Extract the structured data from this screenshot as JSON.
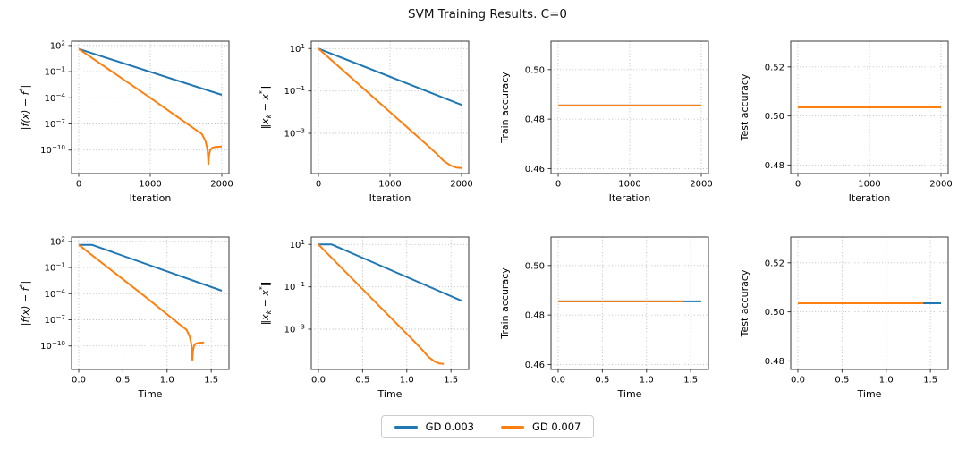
{
  "figure": {
    "title": "SVM Training Results. C=0",
    "grid": true,
    "legend": {
      "position": "lower center",
      "entries": [
        {
          "label": "GD 0.003",
          "color": "#1f77b4"
        },
        {
          "label": "GD 0.007",
          "color": "#ff7f0e"
        }
      ]
    }
  },
  "colors": {
    "blue": "#1f77b4",
    "orange": "#ff7f0e",
    "grid": "#b8b8b8",
    "spine": "#3a3a3a",
    "text": "#000000"
  },
  "chart_data": [
    {
      "type": "line",
      "xlabel": "Iteration",
      "ylabel": "|f(x) − f^*|",
      "ylabel_italic": true,
      "yscale": "log",
      "xlim": [
        -100,
        2100
      ],
      "xticks": [
        0,
        1000,
        2000
      ],
      "xtick_labels": [
        "0",
        "1000",
        "2000"
      ],
      "ylim_exp": [
        -12.7,
        2.5
      ],
      "ytick_exps": [
        2,
        -1,
        -4,
        -7,
        -10
      ],
      "series": [
        {
          "name": "GD 0.003",
          "color": "#1f77b4",
          "x": [
            0,
            2000
          ],
          "y": [
            40,
            0.00022
          ]
        },
        {
          "name": "GD 0.007",
          "color": "#ff7f0e",
          "x": [
            0,
            1000,
            1600,
            1720,
            1770,
            1800,
            1812,
            1822,
            1840,
            1865,
            1910,
            2000
          ],
          "y": [
            40,
            0.0001,
            3.4e-08,
            7e-09,
            1.2e-09,
            1.2e-10,
            2.5e-12,
            3e-11,
            1.1e-10,
            1.8e-10,
            2.3e-10,
            2.5e-10
          ]
        }
      ]
    },
    {
      "type": "line",
      "xlabel": "Iteration",
      "ylabel": "‖x_k − x^*‖",
      "ylabel_italic": true,
      "yscale": "log",
      "xlim": [
        -100,
        2100
      ],
      "xticks": [
        0,
        1000,
        2000
      ],
      "xtick_labels": [
        "0",
        "1000",
        "2000"
      ],
      "ylim_exp": [
        -4.9,
        1.35
      ],
      "ytick_exps": [
        1,
        -1,
        -3
      ],
      "series": [
        {
          "name": "GD 0.003",
          "color": "#1f77b4",
          "x": [
            0,
            2000
          ],
          "y": [
            10,
            0.022
          ]
        },
        {
          "name": "GD 0.007",
          "color": "#ff7f0e",
          "x": [
            0,
            1000,
            1500,
            1650,
            1750,
            1850,
            1925,
            2000
          ],
          "y": [
            10,
            0.01,
            0.00032,
            0.00011,
            5e-05,
            3e-05,
            2.45e-05,
            2.3e-05
          ]
        }
      ]
    },
    {
      "type": "line",
      "xlabel": "Iteration",
      "ylabel": "Train accuracy",
      "ylabel_italic": false,
      "yscale": "linear",
      "xlim": [
        -100,
        2100
      ],
      "xticks": [
        0,
        1000,
        2000
      ],
      "xtick_labels": [
        "0",
        "1000",
        "2000"
      ],
      "ylim": [
        0.458,
        0.5115
      ],
      "yticks": [
        0.46,
        0.48,
        0.5
      ],
      "ytick_labels": [
        "0.46",
        "0.48",
        "0.50"
      ],
      "series": [
        {
          "name": "GD 0.003",
          "color": "#1f77b4",
          "x": [
            0,
            2000
          ],
          "y": [
            0.4855,
            0.4855
          ]
        },
        {
          "name": "GD 0.007",
          "color": "#ff7f0e",
          "x": [
            0,
            2000
          ],
          "y": [
            0.4855,
            0.4855
          ]
        }
      ]
    },
    {
      "type": "line",
      "xlabel": "Iteration",
      "ylabel": "Test accuracy",
      "ylabel_italic": false,
      "yscale": "linear",
      "xlim": [
        -100,
        2100
      ],
      "xticks": [
        0,
        1000,
        2000
      ],
      "xtick_labels": [
        "0",
        "1000",
        "2000"
      ],
      "ylim": [
        0.4765,
        0.5305
      ],
      "yticks": [
        0.48,
        0.5,
        0.52
      ],
      "ytick_labels": [
        "0.48",
        "0.50",
        "0.52"
      ],
      "series": [
        {
          "name": "GD 0.003",
          "color": "#1f77b4",
          "x": [
            0,
            2000
          ],
          "y": [
            0.5035,
            0.5035
          ]
        },
        {
          "name": "GD 0.007",
          "color": "#ff7f0e",
          "x": [
            0,
            2000
          ],
          "y": [
            0.5035,
            0.5035
          ]
        }
      ]
    },
    {
      "type": "line",
      "xlabel": "Time",
      "ylabel": "|f(x) − f^*|",
      "ylabel_italic": true,
      "yscale": "log",
      "xlim": [
        -0.081,
        1.701
      ],
      "xticks": [
        0,
        0.5,
        1.0,
        1.5
      ],
      "xtick_labels": [
        "0.0",
        "0.5",
        "1.0",
        "1.5"
      ],
      "ylim_exp": [
        -12.7,
        2.5
      ],
      "ytick_exps": [
        2,
        -1,
        -4,
        -7,
        -10
      ],
      "series": [
        {
          "name": "GD 0.003",
          "color": "#1f77b4",
          "x": [
            0,
            0.15,
            1.62
          ],
          "y": [
            40,
            40,
            0.00022
          ]
        },
        {
          "name": "GD 0.007",
          "color": "#ff7f0e",
          "x": [
            0,
            0.71,
            1.136,
            1.221,
            1.257,
            1.278,
            1.287,
            1.294,
            1.306,
            1.324,
            1.356,
            1.42
          ],
          "y": [
            40,
            0.0001,
            3.4e-08,
            7e-09,
            1.2e-09,
            1.2e-10,
            2.5e-12,
            3e-11,
            1.1e-10,
            1.8e-10,
            2.3e-10,
            2.5e-10
          ]
        }
      ]
    },
    {
      "type": "line",
      "xlabel": "Time",
      "ylabel": "‖x_k − x^*‖",
      "ylabel_italic": true,
      "yscale": "log",
      "xlim": [
        -0.081,
        1.701
      ],
      "xticks": [
        0,
        0.5,
        1.0,
        1.5
      ],
      "xtick_labels": [
        "0.0",
        "0.5",
        "1.0",
        "1.5"
      ],
      "ylim_exp": [
        -4.9,
        1.35
      ],
      "ytick_exps": [
        1,
        -1,
        -3
      ],
      "series": [
        {
          "name": "GD 0.003",
          "color": "#1f77b4",
          "x": [
            0,
            0.15,
            1.62
          ],
          "y": [
            10,
            10,
            0.022
          ]
        },
        {
          "name": "GD 0.007",
          "color": "#ff7f0e",
          "x": [
            0,
            0.71,
            1.065,
            1.172,
            1.243,
            1.314,
            1.367,
            1.42
          ],
          "y": [
            10,
            0.01,
            0.00032,
            0.00011,
            5e-05,
            3e-05,
            2.45e-05,
            2.3e-05
          ]
        }
      ]
    },
    {
      "type": "line",
      "xlabel": "Time",
      "ylabel": "Train accuracy",
      "ylabel_italic": false,
      "yscale": "linear",
      "xlim": [
        -0.081,
        1.701
      ],
      "xticks": [
        0,
        0.5,
        1.0,
        1.5
      ],
      "xtick_labels": [
        "0.0",
        "0.5",
        "1.0",
        "1.5"
      ],
      "ylim": [
        0.458,
        0.5115
      ],
      "yticks": [
        0.46,
        0.48,
        0.5
      ],
      "ytick_labels": [
        "0.46",
        "0.48",
        "0.50"
      ],
      "series": [
        {
          "name": "GD 0.003",
          "color": "#1f77b4",
          "x": [
            0,
            1.62
          ],
          "y": [
            0.4855,
            0.4855
          ]
        },
        {
          "name": "GD 0.007",
          "color": "#ff7f0e",
          "x": [
            0,
            1.42
          ],
          "y": [
            0.4855,
            0.4855
          ]
        }
      ]
    },
    {
      "type": "line",
      "xlabel": "Time",
      "ylabel": "Test accuracy",
      "ylabel_italic": false,
      "yscale": "linear",
      "xlim": [
        -0.081,
        1.701
      ],
      "xticks": [
        0,
        0.5,
        1.0,
        1.5
      ],
      "xtick_labels": [
        "0.0",
        "0.5",
        "1.0",
        "1.5"
      ],
      "ylim": [
        0.4765,
        0.5305
      ],
      "yticks": [
        0.48,
        0.5,
        0.52
      ],
      "ytick_labels": [
        "0.48",
        "0.50",
        "0.52"
      ],
      "series": [
        {
          "name": "GD 0.003",
          "color": "#1f77b4",
          "x": [
            0,
            1.62
          ],
          "y": [
            0.5035,
            0.5035
          ]
        },
        {
          "name": "GD 0.007",
          "color": "#ff7f0e",
          "x": [
            0,
            1.42
          ],
          "y": [
            0.5035,
            0.5035
          ]
        }
      ]
    }
  ]
}
